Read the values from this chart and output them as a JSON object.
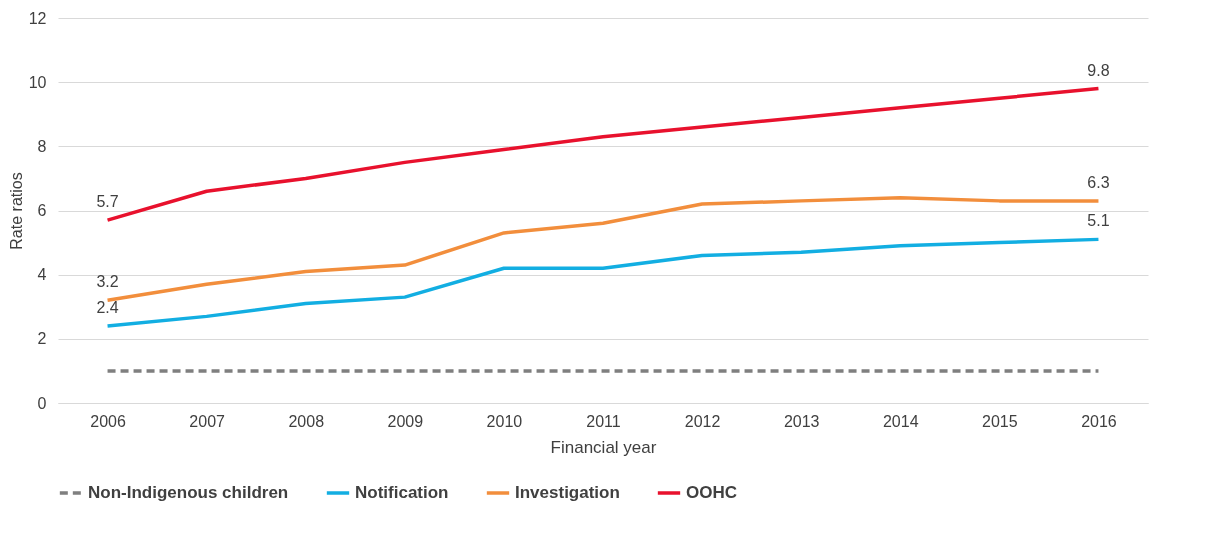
{
  "chart_data": {
    "type": "line",
    "xlabel": "Financial year",
    "ylabel": "Rate ratios",
    "categories": [
      "2006",
      "2007",
      "2008",
      "2009",
      "2010",
      "2011",
      "2012",
      "2013",
      "2014",
      "2015",
      "2016"
    ],
    "ylim": [
      0,
      12
    ],
    "yticks": [
      0,
      2,
      4,
      6,
      8,
      10,
      12
    ],
    "grid": "y",
    "legend": "bottom",
    "series": [
      {
        "name": "Non-Indigenous children",
        "color": "#7f7f7f",
        "line_style": "dashed",
        "values": [
          1,
          1,
          1,
          1,
          1,
          1,
          1,
          1,
          1,
          1,
          1
        ]
      },
      {
        "name": "Notification",
        "color": "#12aee2",
        "line_style": "solid",
        "values": [
          2.4,
          2.7,
          3.1,
          3.3,
          4.2,
          4.2,
          4.6,
          4.7,
          4.9,
          5.0,
          5.1
        ],
        "value_labels": [
          "2.4",
          null,
          null,
          null,
          null,
          null,
          null,
          null,
          null,
          null,
          "5.1"
        ]
      },
      {
        "name": "Investigation",
        "color": "#f28e3c",
        "line_style": "solid",
        "values": [
          3.2,
          3.7,
          4.1,
          4.3,
          5.3,
          5.6,
          6.2,
          6.3,
          6.4,
          6.3,
          6.3
        ],
        "value_labels": [
          "3.2",
          null,
          null,
          null,
          null,
          null,
          null,
          null,
          null,
          null,
          "6.3"
        ]
      },
      {
        "name": "OOHC",
        "color": "#e8112d",
        "line_style": "solid",
        "values": [
          5.7,
          6.6,
          7.0,
          7.5,
          7.9,
          8.3,
          8.6,
          8.9,
          9.2,
          9.5,
          9.8
        ],
        "value_labels": [
          "5.7",
          null,
          null,
          null,
          null,
          null,
          null,
          null,
          null,
          null,
          "9.8"
        ]
      }
    ]
  }
}
